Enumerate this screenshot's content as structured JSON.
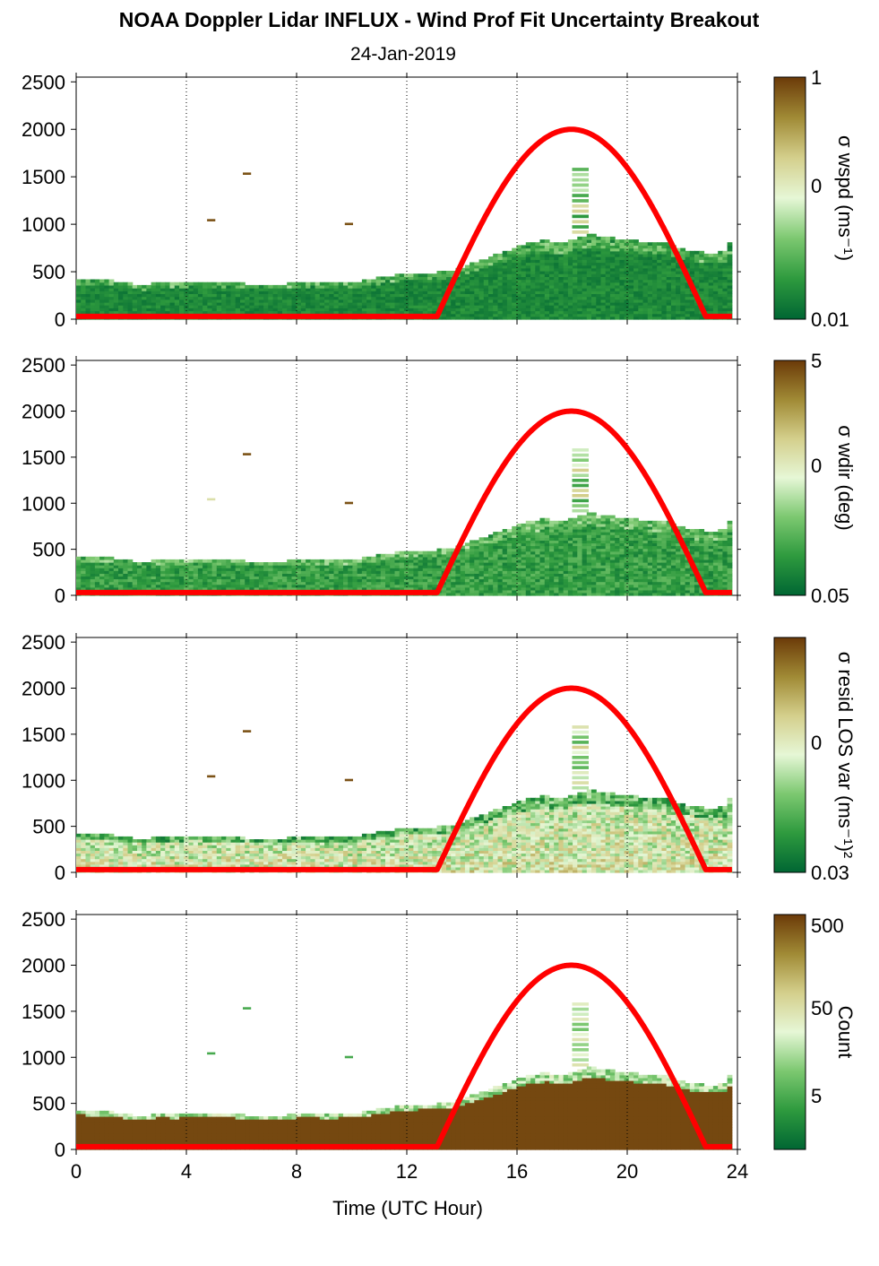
{
  "title": "NOAA Doppler Lidar INFLUX - Wind Prof Fit Uncertainty Breakout",
  "subtitle": "24-Jan-2019",
  "colors": {
    "sun_curve": "#ff0000",
    "colormap": [
      "#006633",
      "#2e9a3e",
      "#7cc870",
      "#e6f7d6",
      "#d4cf8c",
      "#a08a35",
      "#6b3a08"
    ]
  },
  "chart_data": [
    {
      "type": "heatmap",
      "panel": 1,
      "colorbar_label": "σ wspd (ms⁻¹)",
      "colorbar_ticks": [
        "1",
        "0",
        "0.01"
      ],
      "x_ticks": [
        "0",
        "4",
        "8",
        "12",
        "16",
        "20",
        "24"
      ],
      "y_ticks": [
        "0",
        "500",
        "1000",
        "1500",
        "2000",
        "2500"
      ],
      "xlim": [
        0,
        24
      ],
      "ylim": [
        0,
        2550
      ],
      "values_shown": "mostly low (dark green) within boundary layer; isolated high values at 5 h ~1030 m, 6.2 h ~1520 m, 10 h ~990 m"
    },
    {
      "type": "heatmap",
      "panel": 2,
      "colorbar_label": "σ wdir (deg)",
      "colorbar_ticks": [
        "5",
        "0",
        "0.05"
      ],
      "x_ticks": [
        "0",
        "4",
        "8",
        "12",
        "16",
        "20",
        "24"
      ],
      "y_ticks": [
        "0",
        "500",
        "1000",
        "1500",
        "2000",
        "2500"
      ],
      "xlim": [
        0,
        24
      ],
      "ylim": [
        0,
        2550
      ],
      "values_shown": "mostly low (green) within boundary layer"
    },
    {
      "type": "heatmap",
      "panel": 3,
      "colorbar_label": "σ resid LOS var (ms⁻¹)²",
      "colorbar_ticks": [
        "0",
        "0.03"
      ],
      "x_ticks": [
        "0",
        "4",
        "8",
        "12",
        "16",
        "20",
        "24"
      ],
      "y_ticks": [
        "0",
        "500",
        "1000",
        "1500",
        "2000",
        "2500"
      ],
      "xlim": [
        0,
        24
      ],
      "ylim": [
        0,
        2550
      ],
      "values_shown": "moderate (light green/tan) within boundary layer"
    },
    {
      "type": "heatmap",
      "panel": 4,
      "colorbar_label": "Count",
      "colorbar_ticks": [
        "500",
        "50",
        "5"
      ],
      "x_ticks": [
        "0",
        "4",
        "8",
        "12",
        "16",
        "20",
        "24"
      ],
      "y_ticks": [
        "0",
        "500",
        "1000",
        "1500",
        "2000",
        "2500"
      ],
      "xlim": [
        0,
        24
      ],
      "ylim": [
        0,
        2550
      ],
      "xlabel": "Time (UTC Hour)",
      "values_shown": "high counts (brown) within boundary layer; low counts (green) at top edge and isolated cells"
    }
  ],
  "boundary_layer_top": {
    "x": [
      0,
      0.5,
      1,
      1.5,
      2,
      2.5,
      3,
      3.5,
      4,
      4.5,
      5,
      5.5,
      6,
      6.5,
      7,
      7.5,
      8,
      8.5,
      9,
      9.5,
      10,
      10.5,
      11,
      11.5,
      12,
      12.5,
      13,
      13.5,
      14,
      14.5,
      15,
      15.5,
      16,
      16.5,
      17,
      17.5,
      18,
      18.5,
      19,
      19.5,
      20,
      20.5,
      21,
      21.5,
      22,
      22.5,
      23,
      23.5,
      23.8
    ],
    "y": [
      420,
      400,
      400,
      380,
      360,
      350,
      390,
      370,
      390,
      390,
      380,
      390,
      360,
      360,
      360,
      360,
      380,
      390,
      360,
      380,
      380,
      400,
      430,
      450,
      470,
      480,
      480,
      500,
      540,
      600,
      650,
      700,
      760,
      800,
      820,
      790,
      830,
      880,
      860,
      840,
      830,
      800,
      790,
      780,
      720,
      700,
      680,
      700,
      890
    ]
  },
  "sun_elevation_curve": {
    "rise_hour": 13.1,
    "set_hour": 22.85,
    "peak_hour": 18,
    "peak_value": 2000,
    "baseline": 30
  },
  "isolated_cells": [
    {
      "x": 4.9,
      "y": 1030
    },
    {
      "x": 6.2,
      "y": 1520
    },
    {
      "x": 9.9,
      "y": 990
    }
  ],
  "plume_cells_x": 18.3,
  "plume_top": 1600
}
